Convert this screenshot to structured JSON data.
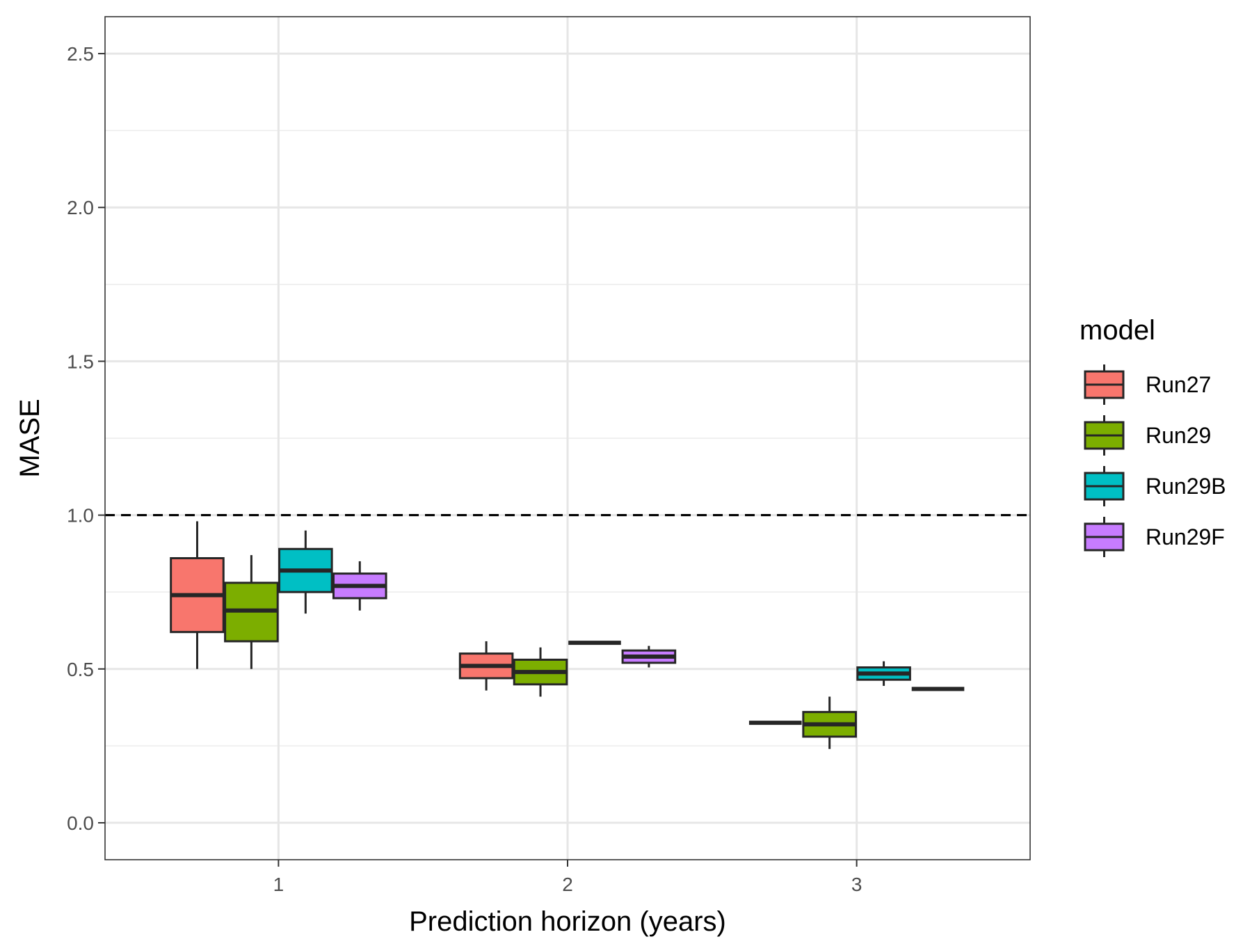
{
  "chart_data": {
    "type": "box",
    "title": "",
    "xlabel": "Prediction horizon (years)",
    "ylabel": "MASE",
    "categories": [
      "1",
      "2",
      "3"
    ],
    "ylim": [
      -0.12,
      2.62
    ],
    "yticks": [
      "0.0",
      "0.5",
      "1.0",
      "1.5",
      "2.0",
      "2.5"
    ],
    "ytick_values": [
      0,
      0.5,
      1.0,
      1.5,
      2.0,
      2.5
    ],
    "reference_line": {
      "y": 1.0,
      "style": "dashed",
      "color": "#000000"
    },
    "grid": true,
    "legend": {
      "title": "model",
      "position": "right"
    },
    "series": [
      {
        "name": "Run27",
        "color": "#F8766D",
        "boxes": [
          {
            "x": "1",
            "min": 0.5,
            "q1": 0.62,
            "median": 0.74,
            "q3": 0.86,
            "max": 0.98
          },
          {
            "x": "2",
            "min": 0.43,
            "q1": 0.47,
            "median": 0.51,
            "q3": 0.55,
            "max": 0.59
          },
          {
            "x": "3",
            "min": 0.325,
            "q1": 0.325,
            "median": 0.325,
            "q3": 0.325,
            "max": 0.325
          }
        ]
      },
      {
        "name": "Run29",
        "color": "#7CAE00",
        "boxes": [
          {
            "x": "1",
            "min": 0.5,
            "q1": 0.59,
            "median": 0.69,
            "q3": 0.78,
            "max": 0.87
          },
          {
            "x": "2",
            "min": 0.41,
            "q1": 0.45,
            "median": 0.49,
            "q3": 0.53,
            "max": 0.57
          },
          {
            "x": "3",
            "min": 0.24,
            "q1": 0.28,
            "median": 0.32,
            "q3": 0.36,
            "max": 0.41
          }
        ]
      },
      {
        "name": "Run29B",
        "color": "#00BFC4",
        "boxes": [
          {
            "x": "1",
            "min": 0.68,
            "q1": 0.75,
            "median": 0.82,
            "q3": 0.89,
            "max": 0.95
          },
          {
            "x": "2",
            "min": 0.585,
            "q1": 0.585,
            "median": 0.585,
            "q3": 0.585,
            "max": 0.585
          },
          {
            "x": "3",
            "min": 0.445,
            "q1": 0.465,
            "median": 0.485,
            "q3": 0.505,
            "max": 0.525
          }
        ]
      },
      {
        "name": "Run29F",
        "color": "#C77CFF",
        "boxes": [
          {
            "x": "1",
            "min": 0.69,
            "q1": 0.73,
            "median": 0.77,
            "q3": 0.81,
            "max": 0.85
          },
          {
            "x": "2",
            "min": 0.505,
            "q1": 0.52,
            "median": 0.54,
            "q3": 0.56,
            "max": 0.575
          },
          {
            "x": "3",
            "min": 0.435,
            "q1": 0.435,
            "median": 0.435,
            "q3": 0.435,
            "max": 0.435
          }
        ]
      }
    ]
  }
}
